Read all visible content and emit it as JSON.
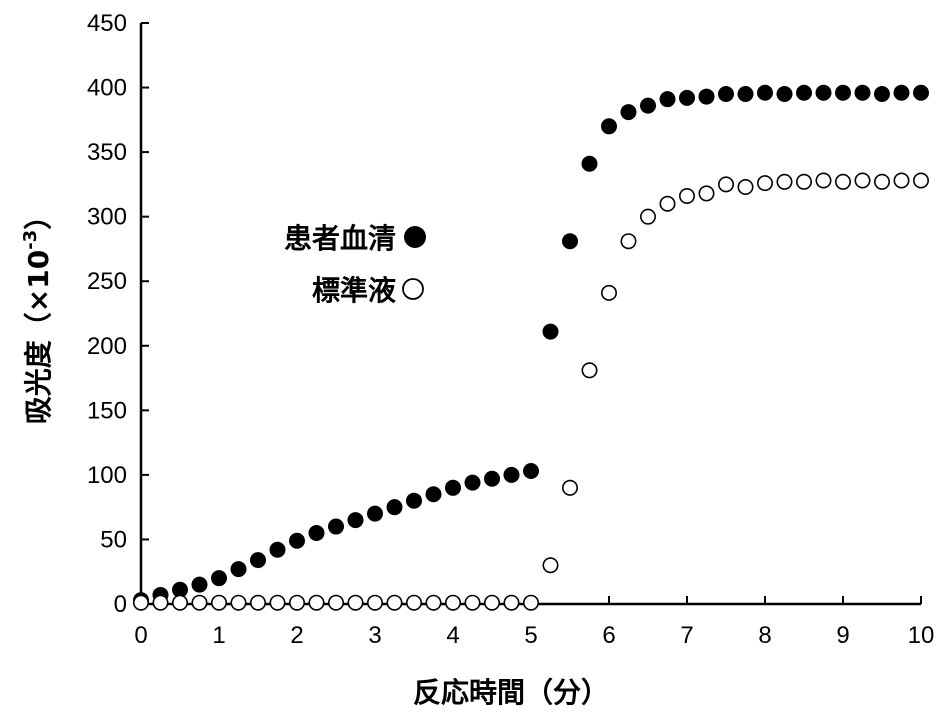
{
  "chart_data": {
    "type": "scatter",
    "xlabel": "反応時間（分）",
    "ylabel_main": "吸光度（×10",
    "ylabel_exp": "-3",
    "ylabel_close": "）",
    "xlim": [
      0,
      10
    ],
    "ylim": [
      0,
      450
    ],
    "xticks": [
      "0",
      "1",
      "2",
      "3",
      "4",
      "5",
      "6",
      "7",
      "8",
      "9",
      "10"
    ],
    "yticks": [
      "0",
      "50",
      "100",
      "150",
      "200",
      "250",
      "300",
      "350",
      "400",
      "450"
    ],
    "grid": false,
    "legend_position": "upper-left",
    "series": [
      {
        "name": "患者血清",
        "marker": "filled-circle",
        "color": "#000000",
        "x": [
          0,
          0.25,
          0.5,
          0.75,
          1,
          1.25,
          1.5,
          1.75,
          2,
          2.25,
          2.5,
          2.75,
          3,
          3.25,
          3.5,
          3.75,
          4,
          4.25,
          4.5,
          4.75,
          5,
          5.25,
          5.5,
          5.75,
          6,
          6.25,
          6.5,
          6.75,
          7,
          7.25,
          7.5,
          7.75,
          8,
          8.25,
          8.5,
          8.75,
          9,
          9.25,
          9.5,
          9.75,
          10
        ],
        "y": [
          3,
          7,
          11,
          15,
          20,
          27,
          34,
          42,
          49,
          55,
          60,
          65,
          70,
          75,
          80,
          85,
          90,
          94,
          97,
          100,
          103,
          211,
          281,
          341,
          370,
          381,
          386,
          391,
          392,
          393,
          395,
          395,
          396,
          395,
          396,
          396,
          396,
          396,
          395,
          396,
          396
        ]
      },
      {
        "name": "標準液",
        "marker": "open-circle",
        "color": "#000000",
        "x": [
          0,
          0.25,
          0.5,
          0.75,
          1,
          1.25,
          1.5,
          1.75,
          2,
          2.25,
          2.5,
          2.75,
          3,
          3.25,
          3.5,
          3.75,
          4,
          4.25,
          4.5,
          4.75,
          5,
          5.25,
          5.5,
          5.75,
          6,
          6.25,
          6.5,
          6.75,
          7,
          7.25,
          7.5,
          7.75,
          8,
          8.25,
          8.5,
          8.75,
          9,
          9.25,
          9.5,
          9.75,
          10
        ],
        "y": [
          1,
          1,
          1,
          1,
          1,
          1,
          1,
          1,
          1,
          1,
          1,
          1,
          1,
          1,
          1,
          1,
          1,
          1,
          1,
          1,
          1,
          30,
          90,
          181,
          241,
          281,
          300,
          310,
          316,
          318,
          325,
          323,
          326,
          327,
          327,
          328,
          327,
          328,
          327,
          328,
          328
        ]
      }
    ]
  }
}
